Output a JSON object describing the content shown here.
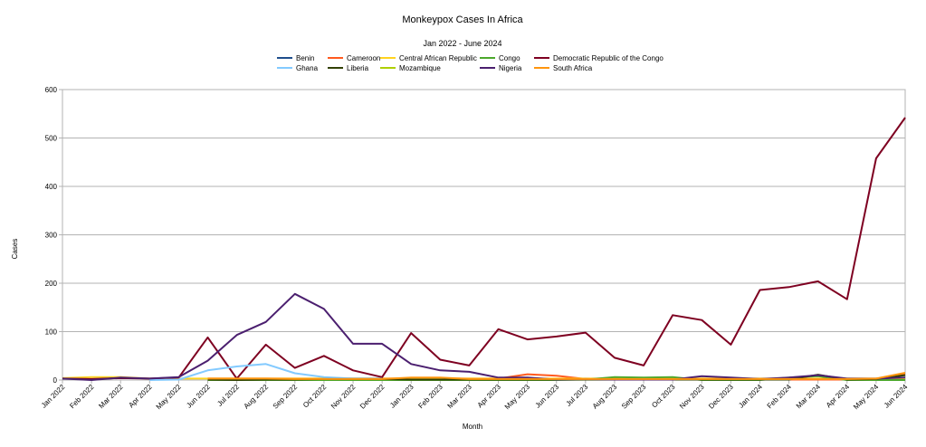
{
  "chart_data": {
    "type": "line",
    "title": "Monkeypox Cases In Africa",
    "subtitle": "Jan 2022 - June 2024",
    "xlabel": "Month",
    "ylabel": "Cases",
    "ylim": [
      0,
      600
    ],
    "yticks": [
      0,
      100,
      200,
      300,
      400,
      500,
      600
    ],
    "grid": true,
    "legend_position": "top",
    "categories": [
      "Jan 2022",
      "Feb 2022",
      "Mar 2022",
      "Apr 2022",
      "May 2022",
      "Jun 2022",
      "Jul 2022",
      "Aug 2022",
      "Sep 2022",
      "Oct 2022",
      "Nov 2022",
      "Dec 2022",
      "Jan 2023",
      "Feb 2023",
      "Mar 2023",
      "Apr 2023",
      "May 2023",
      "Jun 2023",
      "Jul 2023",
      "Aug 2023",
      "Sep 2023",
      "Oct 2023",
      "Nov 2023",
      "Dec 2023",
      "Jan 2024",
      "Feb 2024",
      "Mar 2024",
      "Apr 2024",
      "May 2024",
      "Jun 2024"
    ],
    "series": [
      {
        "name": "Benin",
        "color": "#1f4e8c",
        "values": [
          null,
          null,
          null,
          null,
          null,
          null,
          null,
          null,
          null,
          null,
          null,
          null,
          null,
          null,
          null,
          null,
          null,
          null,
          null,
          null,
          null,
          null,
          null,
          null,
          null,
          null,
          null,
          null,
          null,
          null
        ]
      },
      {
        "name": "Cameroon",
        "color": "#ff5a1f",
        "values": [
          null,
          null,
          null,
          null,
          null,
          3,
          3,
          3,
          3,
          3,
          3,
          3,
          3,
          3,
          3,
          3,
          12,
          9,
          2,
          1,
          1,
          1,
          1,
          1,
          1,
          1,
          1,
          1,
          2,
          12
        ]
      },
      {
        "name": "Central African Republic",
        "color": "#ffd320",
        "values": [
          4,
          6,
          6,
          3,
          3,
          3,
          3,
          3,
          3,
          3,
          3,
          3,
          3,
          3,
          3,
          3,
          3,
          3,
          3,
          3,
          3,
          3,
          3,
          3,
          3,
          3,
          3,
          3,
          3,
          3
        ]
      },
      {
        "name": "Congo",
        "color": "#4ca82c",
        "values": [
          null,
          null,
          null,
          null,
          null,
          0,
          0,
          0,
          0,
          0,
          0,
          0,
          0,
          0,
          0,
          0,
          0,
          0,
          1,
          6,
          5,
          6,
          0,
          0,
          0,
          5,
          8,
          0,
          0,
          0
        ]
      },
      {
        "name": "Democratic Republic of the Congo",
        "color": "#7e0021",
        "values": [
          3,
          2,
          4,
          3,
          5,
          88,
          3,
          73,
          25,
          50,
          20,
          6,
          97,
          42,
          30,
          105,
          84,
          90,
          98,
          46,
          30,
          134,
          124,
          73,
          186,
          192,
          204,
          167,
          458,
          542
        ]
      },
      {
        "name": "Ghana",
        "color": "#83caff",
        "values": [
          null,
          null,
          null,
          0,
          1,
          20,
          28,
          33,
          14,
          6,
          3,
          3,
          null,
          null,
          null,
          null,
          null,
          null,
          null,
          null,
          null,
          null,
          null,
          null,
          null,
          null,
          null,
          null,
          null,
          null
        ]
      },
      {
        "name": "Liberia",
        "color": "#314004",
        "values": [
          null,
          null,
          null,
          null,
          null,
          1,
          0,
          1,
          1,
          2,
          2,
          2,
          1,
          1,
          1,
          1,
          1,
          1,
          1,
          1,
          1,
          1,
          1,
          1,
          1,
          1,
          11,
          1,
          2,
          10
        ]
      },
      {
        "name": "Mozambique",
        "color": "#aecf00",
        "values": [
          null,
          null,
          null,
          null,
          null,
          null,
          null,
          null,
          null,
          null,
          null,
          null,
          null,
          null,
          null,
          null,
          null,
          null,
          null,
          null,
          null,
          null,
          null,
          null,
          null,
          null,
          null,
          null,
          null,
          null
        ]
      },
      {
        "name": "Nigeria",
        "color": "#4b1f6f",
        "values": [
          3,
          0,
          5,
          3,
          6,
          40,
          93,
          120,
          178,
          147,
          75,
          75,
          33,
          20,
          17,
          5,
          5,
          1,
          2,
          1,
          1,
          1,
          8,
          5,
          2,
          5,
          10,
          3,
          3,
          5
        ]
      },
      {
        "name": "South Africa",
        "color": "#ff950e",
        "values": [
          null,
          null,
          null,
          null,
          null,
          3,
          3,
          3,
          2,
          2,
          2,
          2,
          5,
          5,
          2,
          2,
          2,
          2,
          2,
          2,
          2,
          2,
          2,
          2,
          2,
          2,
          2,
          2,
          3,
          15
        ]
      }
    ]
  }
}
